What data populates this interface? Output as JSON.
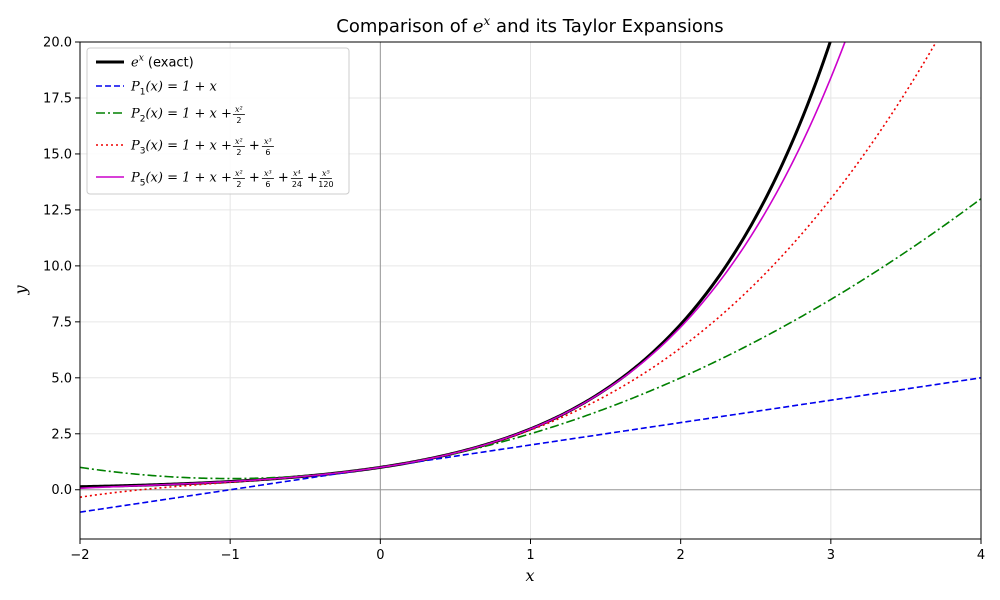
{
  "chart_data": {
    "type": "line",
    "title_parts": [
      "Comparison of ",
      "e",
      "x",
      " and its Taylor Expansions"
    ],
    "xlabel": "x",
    "ylabel": "y",
    "xlim": [
      -2,
      4
    ],
    "ylim": [
      -2.2,
      20
    ],
    "xticks": [
      -2,
      -1,
      0,
      1,
      2,
      3,
      4
    ],
    "xtick_labels": [
      "−2",
      "−1",
      "0",
      "1",
      "2",
      "3",
      "4"
    ],
    "yticks": [
      0,
      2.5,
      5,
      7.5,
      10,
      12.5,
      15,
      17.5,
      20
    ],
    "ytick_labels": [
      "0.0",
      "2.5",
      "5.0",
      "7.5",
      "10.0",
      "12.5",
      "15.0",
      "17.5",
      "20.0"
    ],
    "grid": true,
    "legend_position": "top-left",
    "series": [
      {
        "id": "exact",
        "degree": null,
        "color": "#000000",
        "dash": "solid",
        "width": 3,
        "legend": {
          "base": "e",
          "sup": "x",
          "suffix": " (exact)"
        }
      },
      {
        "id": "p1",
        "degree": 1,
        "color": "#0000ee",
        "dash": "dashed",
        "width": 1.6,
        "legend": {
          "prefix": "P",
          "sub": "1",
          "expr": "(x) = 1 + x"
        }
      },
      {
        "id": "p2",
        "degree": 2,
        "color": "#008000",
        "dash": "dashdot",
        "width": 1.6,
        "legend": {
          "prefix": "P",
          "sub": "2",
          "expr": "(x) = 1 + x + ",
          "fracs": [
            [
              "x²",
              "2"
            ]
          ]
        }
      },
      {
        "id": "p3",
        "degree": 3,
        "color": "#ee0000",
        "dash": "dotted",
        "width": 1.6,
        "legend": {
          "prefix": "P",
          "sub": "3",
          "expr": "(x) = 1 + x + ",
          "fracs": [
            [
              "x²",
              "2"
            ],
            [
              "x³",
              "6"
            ]
          ]
        }
      },
      {
        "id": "p5",
        "degree": 5,
        "color": "#cc00cc",
        "dash": "solid",
        "width": 1.6,
        "legend": {
          "prefix": "P",
          "sub": "5",
          "expr": "(x) = 1 + x + ",
          "fracs": [
            [
              "x²",
              "2"
            ],
            [
              "x³",
              "6"
            ],
            [
              "x⁴",
              "24"
            ],
            [
              "x⁵",
              "120"
            ]
          ]
        }
      }
    ]
  }
}
